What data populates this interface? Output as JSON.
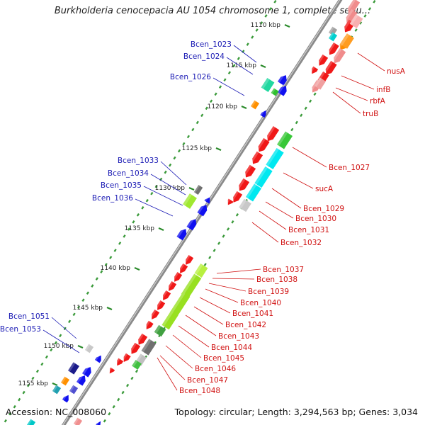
{
  "title": "Burkholderia cenocepacia AU 1054 chromosome 1, complete sequ...",
  "accession_text": "Accession: NC_008060",
  "summary_text": "Topology: circular; Length: 3,294,563 bp; Genes: 3,034",
  "colors": {
    "forward_label": "#1a1ab4",
    "reverse_label": "#d01010",
    "backbone": "#808080",
    "kbp_tick": "#2a8a2a"
  },
  "kbp_ticks": [
    "1110 kbp",
    "1115 kbp",
    "1120 kbp",
    "1125 kbp",
    "1130 kbp",
    "1135 kbp",
    "1140 kbp",
    "1145 kbp",
    "1150 kbp",
    "1155 kbp"
  ],
  "forward_labels": [
    "Bcen_1023",
    "Bcen_1024",
    "Bcen_1026",
    "Bcen_1033",
    "Bcen_1034",
    "Bcen_1035",
    "Bcen_1036",
    "Bcen_1051",
    "Bcen_1053"
  ],
  "reverse_labels": [
    "nusA",
    "infB",
    "rbfA",
    "truB",
    "Bcen_1027",
    "sucA",
    "Bcen_1029",
    "Bcen_1030",
    "Bcen_1031",
    "Bcen_1032",
    "Bcen_1037",
    "Bcen_1038",
    "Bcen_1039",
    "Bcen_1040",
    "Bcen_1041",
    "Bcen_1042",
    "Bcen_1043",
    "Bcen_1044",
    "Bcen_1045",
    "Bcen_1046",
    "Bcen_1047",
    "Bcen_1048"
  ]
}
